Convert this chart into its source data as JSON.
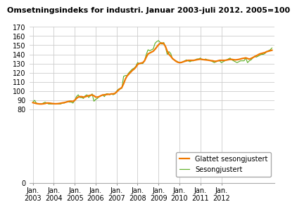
{
  "title": "Omsetningsindeks for industri. Januar 2003-juli 2012. 2005=100",
  "title_fontsize": 8.0,
  "ylim": [
    0,
    170
  ],
  "background_color": "#ffffff",
  "grid_color": "#cccccc",
  "line_smooth_color": "#f07800",
  "line_raw_color": "#5aad20",
  "legend_labels": [
    "Glattet sesongjustert",
    "Sesongjustert"
  ],
  "legend_fontsize": 7.0,
  "tick_fontsize": 7.0,
  "xtick_labels": [
    "Jan.\n2003",
    "Jan.\n2004",
    "Jan.\n2005",
    "Jan.\n2006",
    "Jan.\n2007",
    "Jan.\n2008",
    "Jan.\n2009",
    "Jan.\n2010",
    "Jan.\n2011",
    "Jan.\n2012"
  ],
  "sesongjustert": [
    88,
    90,
    87,
    86,
    86,
    86,
    87,
    88,
    87,
    86,
    86,
    86,
    86,
    86,
    86,
    86,
    86,
    87,
    87,
    88,
    89,
    88,
    88,
    87,
    90,
    94,
    96,
    93,
    93,
    92,
    95,
    96,
    93,
    95,
    97,
    89,
    91,
    92,
    94,
    95,
    96,
    94,
    97,
    97,
    96,
    97,
    96,
    97,
    100,
    102,
    103,
    103,
    116,
    117,
    117,
    120,
    122,
    124,
    125,
    127,
    131,
    130,
    130,
    130,
    133,
    140,
    145,
    144,
    145,
    146,
    152,
    154,
    155,
    153,
    151,
    153,
    148,
    140,
    143,
    141,
    135,
    134,
    133,
    132,
    131,
    131,
    132,
    133,
    134,
    133,
    132,
    133,
    133,
    134,
    135,
    135,
    136,
    134,
    134,
    135,
    134,
    134,
    133,
    132,
    131,
    132,
    133,
    133,
    131,
    132,
    133,
    134,
    135,
    136,
    134,
    133,
    132,
    131,
    132,
    133,
    133,
    133,
    136,
    131,
    133,
    134,
    136,
    138,
    137,
    138,
    139,
    140,
    140,
    141,
    143,
    144,
    145,
    147
  ],
  "glattet": [
    87.5,
    87.0,
    86.5,
    86.2,
    86.0,
    86.0,
    86.2,
    86.5,
    87.0,
    87.0,
    86.8,
    86.5,
    86.3,
    86.2,
    86.3,
    86.5,
    86.8,
    87.2,
    87.5,
    88.0,
    88.5,
    89.0,
    89.0,
    88.8,
    90.0,
    92.0,
    93.5,
    94.0,
    94.0,
    93.5,
    93.8,
    94.5,
    95.0,
    95.5,
    95.8,
    95.0,
    93.5,
    93.5,
    94.0,
    95.0,
    95.8,
    96.0,
    96.2,
    96.5,
    96.5,
    97.0,
    97.0,
    97.5,
    99.0,
    101.0,
    102.5,
    104.0,
    108.0,
    113.0,
    116.5,
    118.5,
    120.5,
    122.5,
    124.0,
    126.0,
    129.0,
    130.0,
    130.5,
    131.0,
    133.0,
    137.0,
    140.5,
    141.5,
    142.5,
    143.5,
    145.5,
    148.0,
    150.5,
    152.0,
    152.5,
    151.5,
    148.5,
    143.5,
    140.0,
    138.0,
    135.5,
    134.0,
    132.5,
    131.5,
    131.0,
    131.2,
    131.8,
    132.5,
    133.0,
    133.5,
    133.5,
    133.5,
    133.5,
    133.8,
    134.2,
    134.5,
    134.8,
    134.5,
    134.2,
    134.0,
    133.8,
    133.5,
    133.2,
    133.0,
    132.5,
    132.5,
    133.0,
    133.5,
    133.5,
    133.5,
    133.5,
    133.8,
    134.2,
    134.5,
    134.5,
    134.2,
    134.0,
    134.2,
    134.5,
    135.0,
    135.5,
    135.8,
    136.2,
    135.5,
    134.8,
    135.5,
    136.5,
    137.5,
    138.5,
    139.5,
    140.5,
    141.0,
    141.5,
    142.0,
    143.0,
    143.5,
    144.0,
    144.5
  ]
}
